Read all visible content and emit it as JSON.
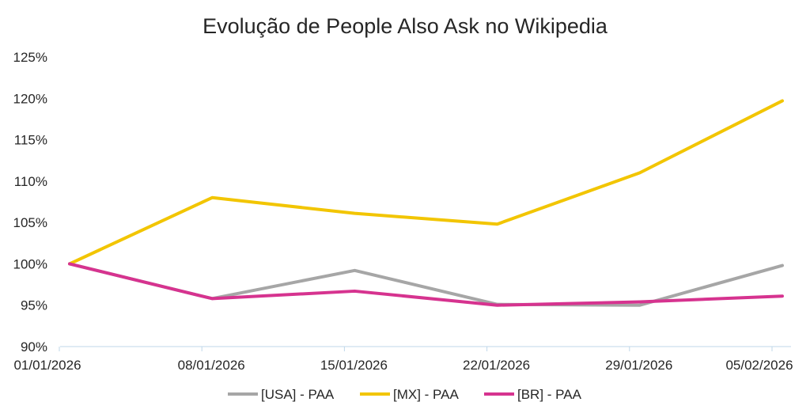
{
  "chart_data": {
    "type": "line",
    "title": "Evolução de People Also Ask no Wikipedia",
    "xlabel": "",
    "ylabel": "",
    "categories": [
      "01/01/2026",
      "08/01/2026",
      "15/01/2026",
      "22/01/2026",
      "29/01/2026",
      "05/02/2026"
    ],
    "y_ticks": [
      "90%",
      "95%",
      "100%",
      "105%",
      "110%",
      "115%",
      "120%",
      "125%"
    ],
    "ylim": [
      90,
      125
    ],
    "grid": false,
    "legend_position": "bottom",
    "series": [
      {
        "name": "[USA] - PAA",
        "color": "#a6a6a6",
        "values": [
          100,
          95.8,
          99.2,
          95.1,
          95.0,
          99.8
        ]
      },
      {
        "name": "[MX] - PAA",
        "color": "#f2c500",
        "values": [
          100,
          108.0,
          106.1,
          104.8,
          111.0,
          119.7
        ]
      },
      {
        "name": "[BR] - PAA",
        "color": "#d6338f",
        "values": [
          100,
          95.8,
          96.7,
          95.0,
          95.4,
          96.1
        ]
      }
    ]
  }
}
